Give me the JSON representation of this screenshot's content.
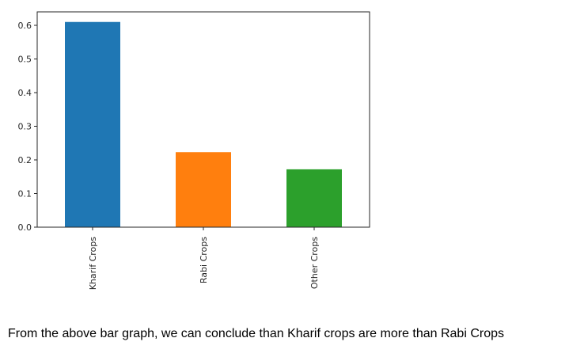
{
  "chart_data": {
    "type": "bar",
    "categories": [
      "Kharif Crops",
      "Rabi Crops",
      "Other Crops"
    ],
    "values": [
      0.61,
      0.223,
      0.172
    ],
    "colors": [
      "#1f77b4",
      "#ff7f0e",
      "#2ca02c"
    ],
    "ylim": [
      0,
      0.64
    ],
    "yticks": [
      0.0,
      0.1,
      0.2,
      0.3,
      0.4,
      0.5,
      0.6
    ],
    "ytick_labels": [
      "0.0",
      "0.1",
      "0.2",
      "0.3",
      "0.4",
      "0.5",
      "0.6"
    ],
    "grid": false,
    "legend": false
  },
  "caption": "From the above bar graph, we can conclude than Kharif crops are more than Rabi Crops"
}
